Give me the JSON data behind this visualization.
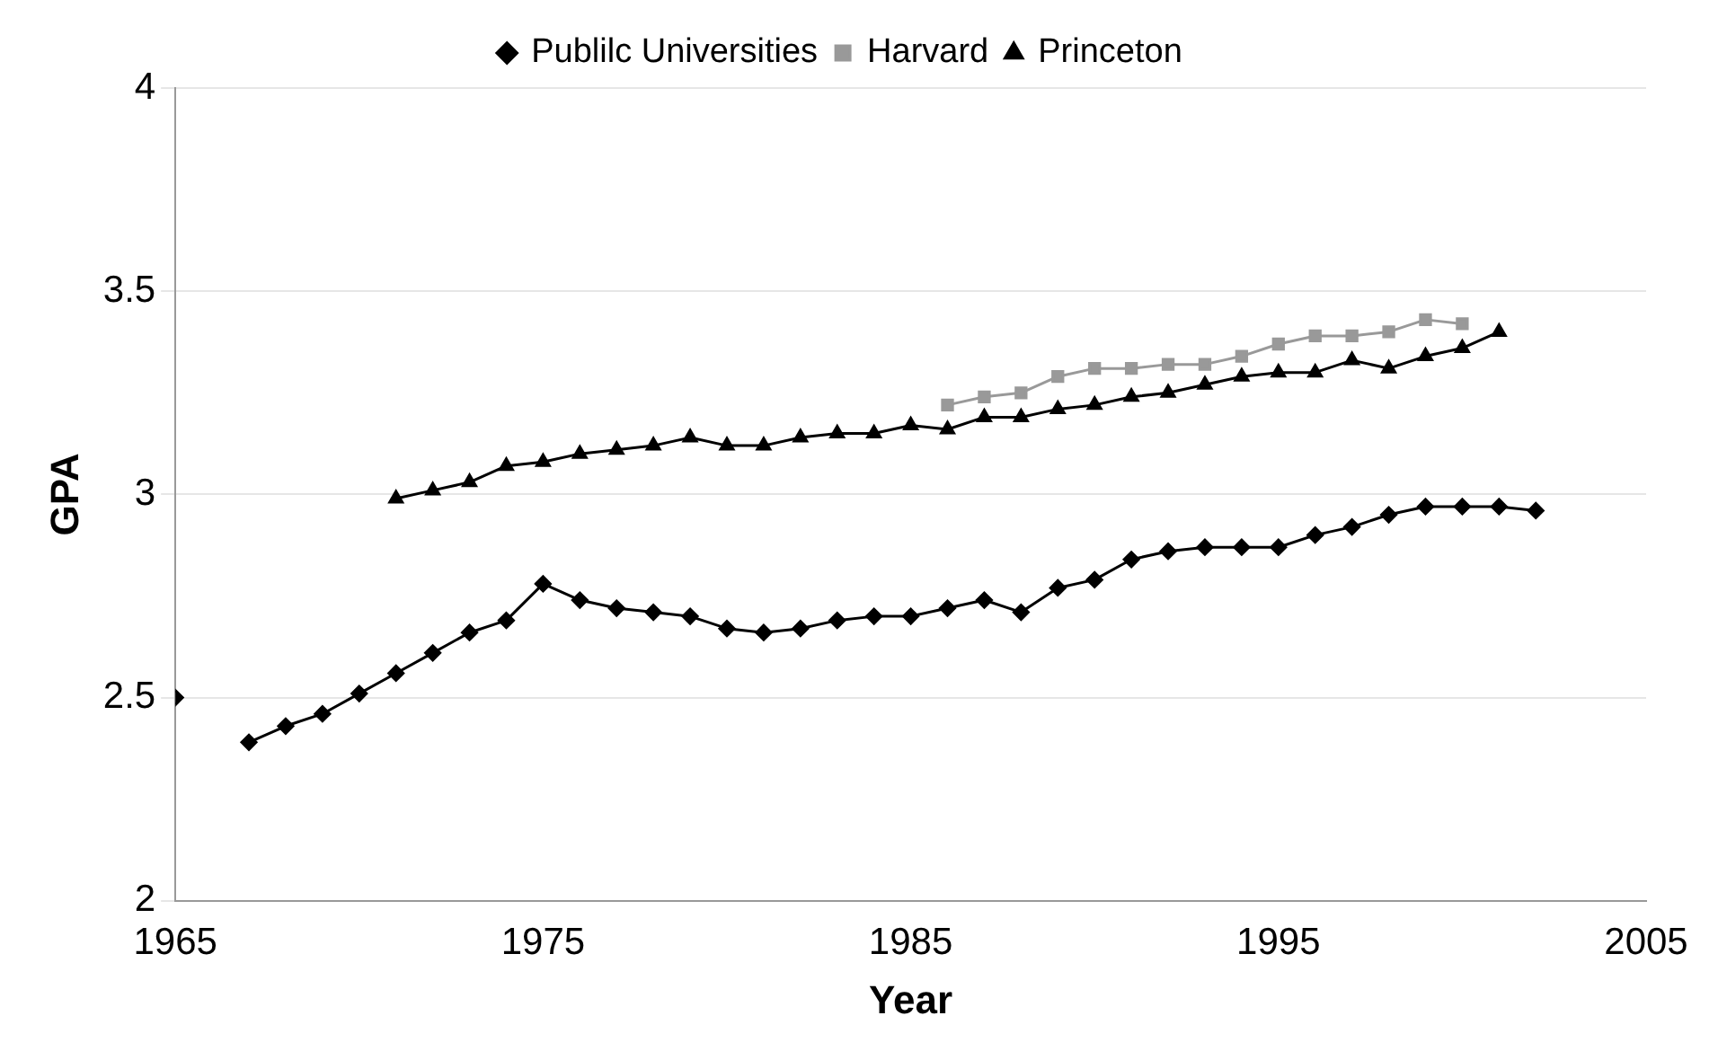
{
  "chart_data": {
    "type": "line",
    "xlabel": "Year",
    "ylabel": "GPA",
    "xlim": [
      1965,
      2005
    ],
    "xticks": [
      1965,
      1975,
      1985,
      1995,
      2005
    ],
    "ylim": [
      2,
      4
    ],
    "yticks": [
      {
        "value": 2,
        "label": "2"
      },
      {
        "value": 2.5,
        "label": "2.5"
      },
      {
        "value": 3,
        "label": "3"
      },
      {
        "value": 3.5,
        "label": "3.5"
      },
      {
        "value": 4,
        "label": "4"
      }
    ],
    "grid": "y",
    "legend": "top",
    "series": [
      {
        "name": "Publilc Universities",
        "color": "#000000",
        "marker": "diamond",
        "x": [
          1965,
          1966,
          1967,
          1968,
          1969,
          1970,
          1971,
          1972,
          1973,
          1974,
          1975,
          1976,
          1977,
          1978,
          1979,
          1980,
          1981,
          1982,
          1983,
          1984,
          1985,
          1986,
          1987,
          1988,
          1989,
          1990,
          1991,
          1992,
          1993,
          1994,
          1995,
          1996,
          1997,
          1998,
          1999,
          2000,
          2001,
          2002
        ],
        "values": [
          2.5,
          null,
          2.39,
          2.43,
          2.46,
          2.51,
          2.56,
          2.61,
          2.66,
          2.69,
          2.78,
          2.74,
          2.72,
          2.71,
          2.7,
          2.67,
          2.66,
          2.67,
          2.69,
          2.7,
          2.7,
          2.72,
          2.74,
          2.71,
          2.77,
          2.79,
          2.84,
          2.86,
          2.87,
          2.87,
          2.87,
          2.9,
          2.92,
          2.95,
          2.97,
          2.97,
          2.97,
          2.96
        ]
      },
      {
        "name": "Harvard",
        "color": "#999999",
        "marker": "square",
        "x": [
          1986,
          1987,
          1988,
          1989,
          1990,
          1991,
          1992,
          1993,
          1994,
          1995,
          1996,
          1997,
          1998,
          1999,
          2000
        ],
        "values": [
          3.22,
          3.24,
          3.25,
          3.29,
          3.31,
          3.31,
          3.32,
          3.32,
          3.34,
          3.37,
          3.39,
          3.39,
          3.4,
          3.43,
          3.42
        ]
      },
      {
        "name": "Princeton",
        "color": "#000000",
        "marker": "triangle",
        "x": [
          1971,
          1972,
          1973,
          1974,
          1975,
          1976,
          1977,
          1978,
          1979,
          1980,
          1981,
          1982,
          1983,
          1984,
          1985,
          1986,
          1987,
          1988,
          1989,
          1990,
          1991,
          1992,
          1993,
          1994,
          1995,
          1996,
          1997,
          1998,
          1999,
          2000,
          2001
        ],
        "values": [
          2.99,
          3.01,
          3.03,
          3.07,
          3.08,
          3.1,
          3.11,
          3.12,
          3.14,
          3.12,
          3.12,
          3.14,
          3.15,
          3.15,
          3.17,
          3.16,
          3.19,
          3.19,
          3.21,
          3.22,
          3.24,
          3.25,
          3.27,
          3.29,
          3.3,
          3.3,
          3.33,
          3.31,
          3.34,
          3.36,
          3.4
        ]
      }
    ]
  }
}
